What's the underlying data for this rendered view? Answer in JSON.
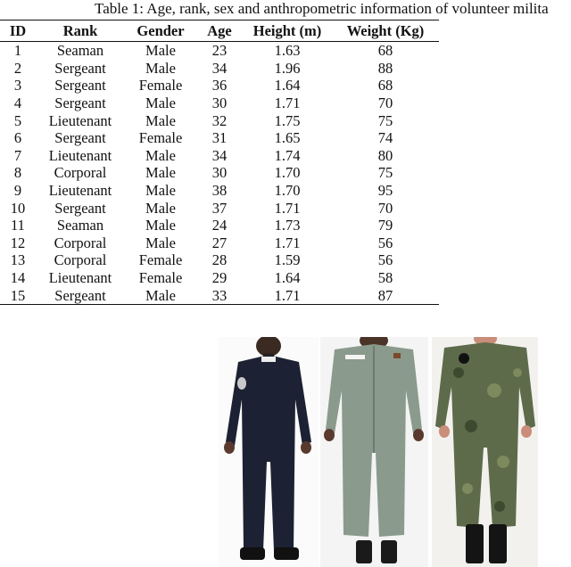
{
  "caption": "Table 1: Age, rank, sex and anthropometric information of volunteer milita",
  "table": {
    "headers": [
      "ID",
      "Rank",
      "Gender",
      "Age",
      "Height (m)",
      "Weight (Kg)"
    ],
    "rows": [
      [
        "1",
        "Seaman",
        "Male",
        "23",
        "1.63",
        "68"
      ],
      [
        "2",
        "Sergeant",
        "Male",
        "34",
        "1.96",
        "88"
      ],
      [
        "3",
        "Sergeant",
        "Female",
        "36",
        "1.64",
        "68"
      ],
      [
        "4",
        "Sergeant",
        "Male",
        "30",
        "1.71",
        "70"
      ],
      [
        "5",
        "Lieutenant",
        "Male",
        "32",
        "1.75",
        "75"
      ],
      [
        "6",
        "Sergeant",
        "Female",
        "31",
        "1.65",
        "74"
      ],
      [
        "7",
        "Lieutenant",
        "Male",
        "34",
        "1.74",
        "80"
      ],
      [
        "8",
        "Corporal",
        "Male",
        "30",
        "1.70",
        "75"
      ],
      [
        "9",
        "Lieutenant",
        "Male",
        "38",
        "1.70",
        "95"
      ],
      [
        "10",
        "Sergeant",
        "Male",
        "37",
        "1.71",
        "70"
      ],
      [
        "11",
        "Seaman",
        "Male",
        "24",
        "1.73",
        "79"
      ],
      [
        "12",
        "Corporal",
        "Male",
        "27",
        "1.71",
        "56"
      ],
      [
        "13",
        "Corporal",
        "Female",
        "28",
        "1.59",
        "56"
      ],
      [
        "14",
        "Lieutenant",
        "Female",
        "29",
        "1.64",
        "58"
      ],
      [
        "15",
        "Sergeant",
        "Male",
        "33",
        "1.71",
        "87"
      ]
    ]
  },
  "figures": [
    {
      "subject": "navy-blue-coverall",
      "color": "#1c2233"
    },
    {
      "subject": "grey-green-coverall",
      "color": "#8a9a8c"
    },
    {
      "subject": "camouflage-coverall",
      "color": "#5d6b4a"
    }
  ]
}
